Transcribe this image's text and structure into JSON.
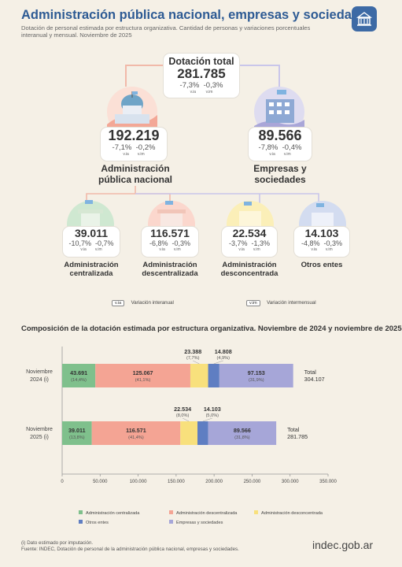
{
  "header": {
    "title": "Administración pública nacional, empresas y sociedades",
    "subtitle": "Dotación de personal estimada por estructura organizativa. Cantidad de personas y variaciones porcentuales interanual y mensual. Noviembre de 2025"
  },
  "total": {
    "label": "Dotación total",
    "value": "281.785",
    "via": "-7,3%",
    "vim": "-0,3%"
  },
  "var_labels": {
    "via": "v.ia",
    "vim": "v.im"
  },
  "apn": {
    "value": "192.219",
    "via": "-7,1%",
    "vim": "-0,2%",
    "label1": "Administración",
    "label2": "pública nacional"
  },
  "empresas": {
    "value": "89.566",
    "via": "-7,8%",
    "vim": "-0,4%",
    "label1": "Empresas y",
    "label2": "sociedades"
  },
  "centralizada": {
    "value": "39.011",
    "via": "-10,7%",
    "vim": "-0,7%",
    "label1": "Administración",
    "label2": "centralizada"
  },
  "descentralizada": {
    "value": "116.571",
    "via": "-6,8%",
    "vim": "-0,3%",
    "label1": "Administración",
    "label2": "descentralizada"
  },
  "desconcentrada": {
    "value": "22.534",
    "via": "-3,7%",
    "vim": "-1,3%",
    "label1": "Administración",
    "label2": "desconcentrada"
  },
  "otros": {
    "value": "14.103",
    "via": "-4,8%",
    "vim": "-0,3%",
    "label1": "Otros entes"
  },
  "key": {
    "via_box": "v.ia",
    "via_text": "Variación interanual",
    "vim_box": "v.im",
    "vim_text": "Variación intermensual"
  },
  "chart_data": {
    "type": "bar",
    "orientation": "horizontal",
    "stacked": true,
    "title": "Composición de la dotación estimada por estructura organizativa. Noviembre de 2024 y noviembre de 2025",
    "categories": [
      [
        "Noviembre",
        "2024 (i)"
      ],
      [
        "Noviembre",
        "2025 (i)"
      ]
    ],
    "series": [
      {
        "name": "Administración centralizada",
        "color": "#7fc08c",
        "values": [
          43691,
          39011
        ],
        "labels": [
          "43.691",
          "39.011"
        ],
        "pcts": [
          "(14,4%)",
          "(13,8%)"
        ]
      },
      {
        "name": "Administración descentralizada",
        "color": "#f4a494",
        "values": [
          125067,
          116571
        ],
        "labels": [
          "125.067",
          "116.571"
        ],
        "pcts": [
          "(41,1%)",
          "(41,4%)"
        ]
      },
      {
        "name": "Administración desconcentrada",
        "color": "#f8e07c",
        "values": [
          23388,
          22534
        ],
        "labels": [
          "23.388",
          "22.534"
        ],
        "pcts": [
          "(7,7%)",
          "(8,0%)"
        ]
      },
      {
        "name": "Otros entes",
        "color": "#5f7ec2",
        "values": [
          14808,
          14103
        ],
        "labels": [
          "14.808",
          "14.103"
        ],
        "pcts": [
          "(4,9%)",
          "(5,0%)"
        ]
      },
      {
        "name": "Empresas y sociedades",
        "color": "#a6a6d8",
        "values": [
          97153,
          89566
        ],
        "labels": [
          "97.153",
          "89.566"
        ],
        "pcts": [
          "(31,9%)",
          "(31,8%)"
        ]
      }
    ],
    "totals": [
      {
        "label": "Total",
        "value": "304.107"
      },
      {
        "label": "Total",
        "value": "281.785"
      }
    ],
    "xlim": [
      0,
      350000
    ],
    "xticks": [
      0,
      50000,
      100000,
      150000,
      200000,
      250000,
      300000,
      350000
    ],
    "xtick_labels": [
      "0",
      "50.000",
      "100.000",
      "150.000",
      "200.000",
      "250.000",
      "300.000",
      "350.000"
    ],
    "legend_position": "bottom"
  },
  "footer": {
    "note": "(i) Dato estimado por imputación.",
    "source": "Fuente: INDEC, Dotación de personal de la administración pública nacional, empresas y sociedades.",
    "brand": "indec.gob.ar"
  }
}
